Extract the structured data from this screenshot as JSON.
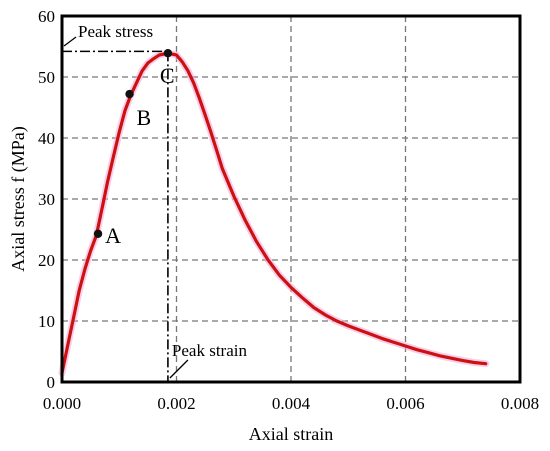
{
  "chart_data": {
    "type": "line",
    "title": "",
    "xlabel": "Axial strain",
    "ylabel": "Axial stress  f (MPa)",
    "xlim": [
      0,
      0.008
    ],
    "ylim": [
      0,
      60
    ],
    "xticks": [
      0,
      0.002,
      0.004,
      0.006,
      0.008
    ],
    "xtick_labels": [
      "0.000",
      "0.002",
      "0.004",
      "0.006",
      "0.008"
    ],
    "yticks": [
      0,
      10,
      20,
      30,
      40,
      50,
      60
    ],
    "ytick_labels": [
      "0",
      "10",
      "20",
      "30",
      "40",
      "50",
      "60"
    ],
    "grid": true,
    "series": [
      {
        "color": "#cc1111",
        "x": [
          0,
          0.0001,
          0.0002,
          0.0003,
          0.0004,
          0.0005,
          0.0006,
          0.0007,
          0.0008,
          0.0009,
          0.001,
          0.0011,
          0.0012,
          0.0013,
          0.0014,
          0.0015,
          0.0016,
          0.0017,
          0.00185,
          0.002,
          0.0021,
          0.0022,
          0.0023,
          0.0024,
          0.0025,
          0.0026,
          0.0027,
          0.0028,
          0.003,
          0.0032,
          0.0034,
          0.0036,
          0.0038,
          0.004,
          0.0042,
          0.0044,
          0.0046,
          0.0048,
          0.005,
          0.0052,
          0.0054,
          0.0056,
          0.0058,
          0.006,
          0.0062,
          0.0064,
          0.0066,
          0.0068,
          0.007,
          0.0072,
          0.0074
        ],
        "y": [
          1.5,
          6,
          10.5,
          15,
          18.5,
          21.5,
          24,
          28.5,
          33,
          37,
          41,
          44.5,
          47,
          49,
          51,
          52.3,
          53,
          53.6,
          53.9,
          53.6,
          52.5,
          51,
          49,
          46.5,
          43.8,
          41,
          38,
          35,
          30.5,
          26.5,
          23,
          20,
          17.5,
          15.5,
          13.8,
          12.2,
          11,
          10,
          9.2,
          8.5,
          7.8,
          7.1,
          6.5,
          5.9,
          5.3,
          4.8,
          4.3,
          3.9,
          3.5,
          3.2,
          3
        ]
      }
    ],
    "points": [
      {
        "label": "A",
        "x": 0.00063,
        "y": 24.3
      },
      {
        "label": "B",
        "x": 0.00118,
        "y": 47.2
      },
      {
        "label": "C",
        "x": 0.00185,
        "y": 53.9
      }
    ],
    "annotations": {
      "peak_stress_label": "Peak stress",
      "peak_strain_label": "Peak strain",
      "peak_x": 0.00185,
      "peak_y": 54.2
    }
  }
}
